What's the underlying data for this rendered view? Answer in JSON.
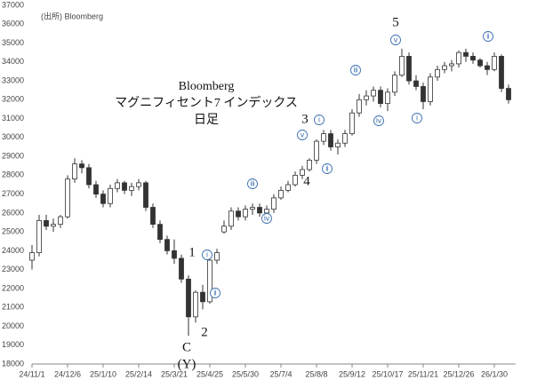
{
  "chart_data": {
    "type": "candlestick",
    "title": "Bloomberg",
    "subtitle": "マグニフィセント7 インデックス",
    "note": "日足",
    "source": "(出所) Bloomberg",
    "color": "#333333",
    "up_color": "#ffffff",
    "categories": [
      "24/11/1",
      null,
      null,
      null,
      null,
      "24/12/6",
      null,
      null,
      null,
      null,
      "25/1/10",
      null,
      null,
      null,
      null,
      "25/2/14",
      null,
      null,
      null,
      null,
      "25/3/21",
      null,
      null,
      null,
      null,
      "25/4/25",
      null,
      null,
      null,
      null,
      "25/5/30",
      null,
      null,
      null,
      null,
      "25/7/4",
      null,
      null,
      null,
      null,
      "25/8/8",
      null,
      null,
      null,
      null,
      "25/9/12",
      null,
      null,
      null,
      null,
      "25/10/17",
      null,
      null,
      null,
      null,
      "25/11/21",
      null,
      null,
      null,
      null,
      "25/12/26",
      null,
      null,
      null,
      null,
      "26/1/30",
      null,
      null
    ],
    "open": [
      23500,
      23900,
      25600,
      25300,
      25400,
      25800,
      27800,
      28600,
      28400,
      27500,
      27000,
      26500,
      27300,
      27600,
      27200,
      27400,
      27600,
      26300,
      25400,
      24600,
      24000,
      23600,
      22500,
      20500,
      21800,
      21300,
      23500,
      25000,
      25300,
      26100,
      25800,
      26200,
      26300,
      26000,
      26200,
      26800,
      27200,
      27500,
      28000,
      28300,
      28800,
      29800,
      30200,
      29500,
      29700,
      30200,
      31300,
      32000,
      32200,
      32500,
      31800,
      32400,
      33300,
      34300,
      33000,
      32700,
      31900,
      33200,
      33600,
      33800,
      33900,
      34500,
      34300,
      34100,
      33800,
      33600,
      34300,
      32600
    ],
    "high": [
      24300,
      25900,
      25900,
      25700,
      25900,
      28000,
      28900,
      28800,
      28600,
      27700,
      27200,
      27500,
      27800,
      27700,
      27600,
      27800,
      27700,
      26500,
      25600,
      24800,
      24600,
      23800,
      22700,
      21900,
      22200,
      23700,
      24100,
      25600,
      26300,
      26300,
      26400,
      26500,
      26500,
      26400,
      27000,
      27400,
      27700,
      28200,
      28500,
      28900,
      29900,
      30400,
      30400,
      29900,
      30400,
      31500,
      32300,
      32500,
      32700,
      32700,
      32600,
      33500,
      34700,
      34500,
      33300,
      32900,
      33400,
      33800,
      34000,
      34100,
      34600,
      34700,
      34500,
      34200,
      34000,
      34500,
      34400,
      32800
    ],
    "low": [
      23000,
      23700,
      25100,
      25000,
      25200,
      25700,
      27600,
      28100,
      27300,
      26800,
      26300,
      26300,
      27100,
      27000,
      26900,
      27200,
      26100,
      25200,
      24400,
      23800,
      23300,
      22300,
      19500,
      20200,
      20900,
      21200,
      23300,
      24900,
      25100,
      25600,
      25600,
      25900,
      25800,
      25800,
      26000,
      26700,
      27100,
      27400,
      27800,
      28200,
      28600,
      29600,
      29300,
      29100,
      29500,
      30100,
      31100,
      31700,
      31900,
      31600,
      31400,
      32200,
      33200,
      32800,
      32500,
      31500,
      31700,
      33000,
      33400,
      33500,
      33700,
      34000,
      33900,
      33700,
      33300,
      33500,
      32400,
      31800
    ],
    "close": [
      23900,
      25600,
      25300,
      25400,
      25800,
      27800,
      28600,
      28400,
      27500,
      27000,
      26500,
      27300,
      27600,
      27200,
      27400,
      27600,
      26300,
      25400,
      24600,
      24000,
      23600,
      22500,
      20500,
      21800,
      21300,
      23500,
      23900,
      25300,
      26100,
      25800,
      26200,
      26300,
      26000,
      26200,
      26800,
      27200,
      27500,
      28000,
      28300,
      28800,
      29800,
      30200,
      29500,
      29700,
      30200,
      31300,
      32000,
      32200,
      32500,
      31800,
      32400,
      33300,
      34300,
      33000,
      32700,
      31900,
      33200,
      33600,
      33800,
      33900,
      34500,
      34300,
      34100,
      33800,
      33600,
      34300,
      32600,
      32000
    ],
    "ylim": [
      18000,
      37000
    ],
    "yticks": [
      18000,
      19000,
      20000,
      21000,
      22000,
      23000,
      24000,
      25000,
      26000,
      27000,
      28000,
      29000,
      30000,
      31000,
      32000,
      33000,
      34000,
      35000,
      36000,
      37000
    ],
    "grid": false,
    "annotations": [
      {
        "text": "1"
      },
      {
        "text": "2"
      },
      {
        "text": "C"
      },
      {
        "text": "(Y)"
      },
      {
        "text": "3"
      },
      {
        "text": "4"
      },
      {
        "text": "5"
      },
      {
        "text": "ⅰ",
        "circled": true
      },
      {
        "text": "ⅱ",
        "circled": true
      },
      {
        "text": "ⅲ",
        "circled": true
      },
      {
        "text": "ⅳ",
        "circled": true
      },
      {
        "text": "ⅴ",
        "circled": true
      },
      {
        "text": "ⅰ",
        "circled": true
      },
      {
        "text": "ⅱ",
        "circled": true
      },
      {
        "text": "ⅲ",
        "circled": true
      },
      {
        "text": "ⅳ",
        "circled": true
      },
      {
        "text": "ⅴ",
        "circled": true
      },
      {
        "text": "ⅰ",
        "circled": true
      },
      {
        "text": "ⅱ",
        "circled": true
      }
    ]
  }
}
